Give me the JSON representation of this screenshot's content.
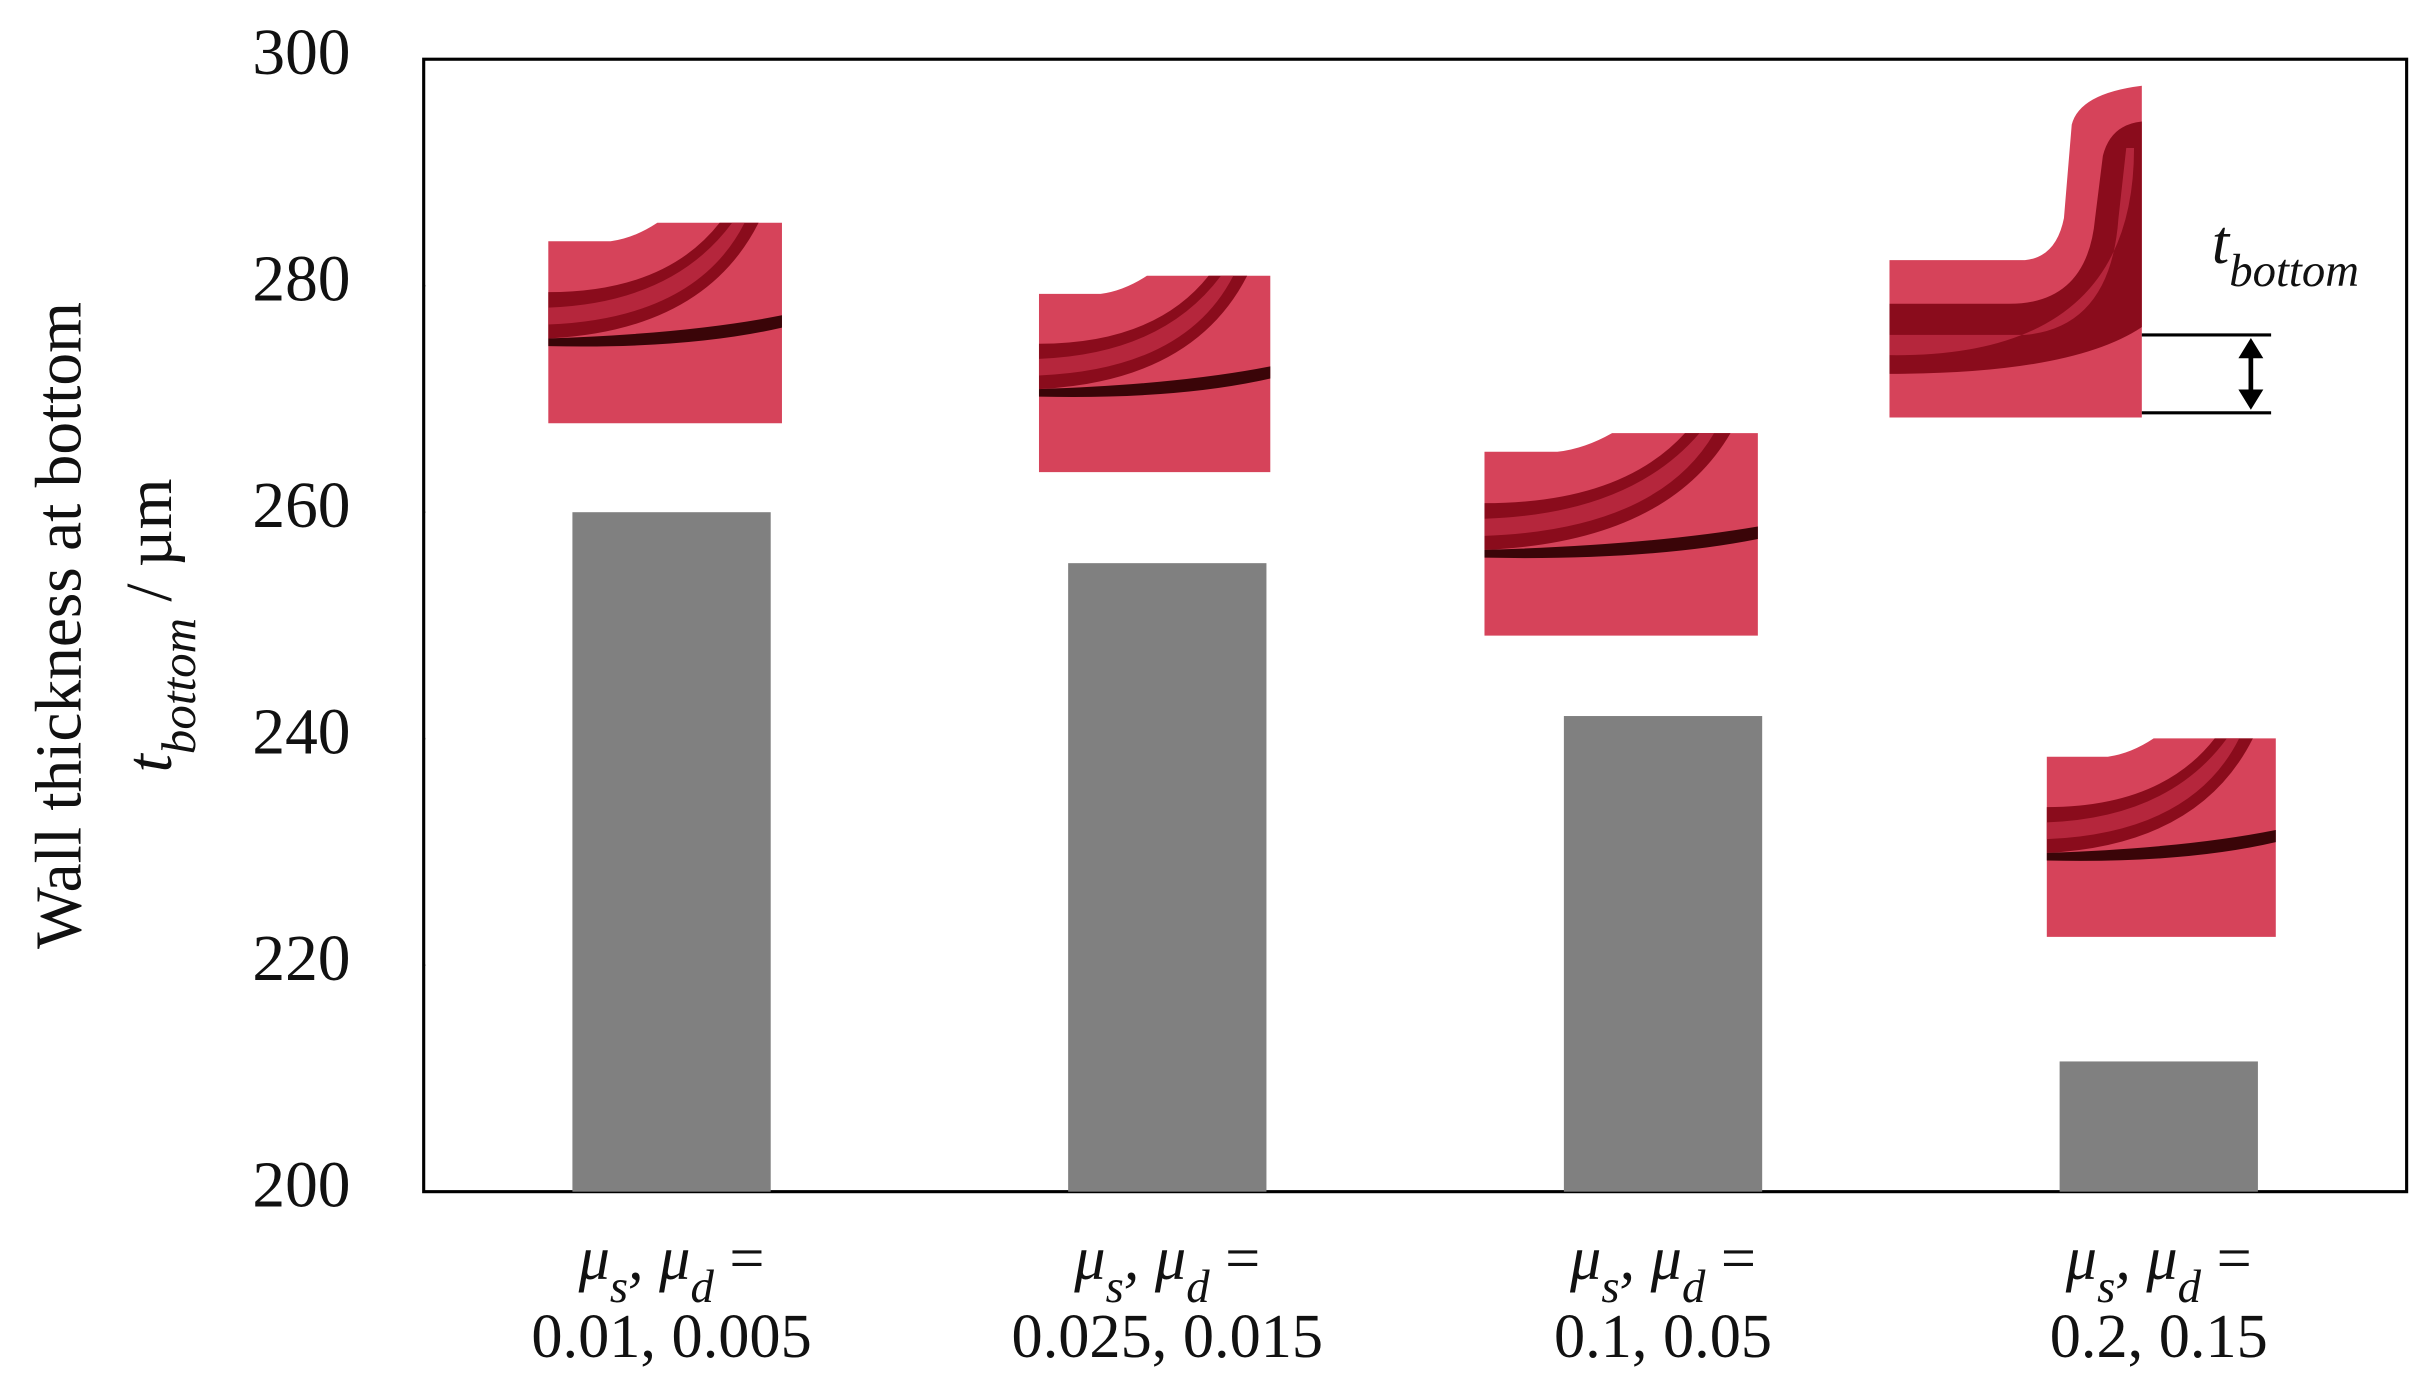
{
  "chart_data": {
    "type": "bar",
    "y_label": "Wall thickness at bottom",
    "y_label_unit": [
      {
        "text": "t",
        "italic": true
      },
      {
        "text": "bottom",
        "italic": true,
        "sub": true
      },
      {
        "text": " / µm"
      }
    ],
    "category_prefix": [
      {
        "text": "μ",
        "italic": true
      },
      {
        "text": "s",
        "italic": true,
        "sub": true
      },
      {
        "text": ", μ",
        "italic": true
      },
      {
        "text": "d",
        "italic": true,
        "sub": true
      },
      {
        "text": " ="
      }
    ],
    "categories": [
      "0.01, 0.005",
      "0.025, 0.015",
      "0.1, 0.05",
      "0.2, 0.15"
    ],
    "values": [
      260,
      255.5,
      242,
      211.5
    ],
    "color": "#808080",
    "ylim": [
      200,
      300
    ],
    "yticks": [
      200,
      220,
      240,
      260,
      280,
      300
    ],
    "annotation": [
      {
        "text": "t",
        "italic": true
      },
      {
        "text": "bottom",
        "italic": true,
        "sub": true
      }
    ]
  }
}
